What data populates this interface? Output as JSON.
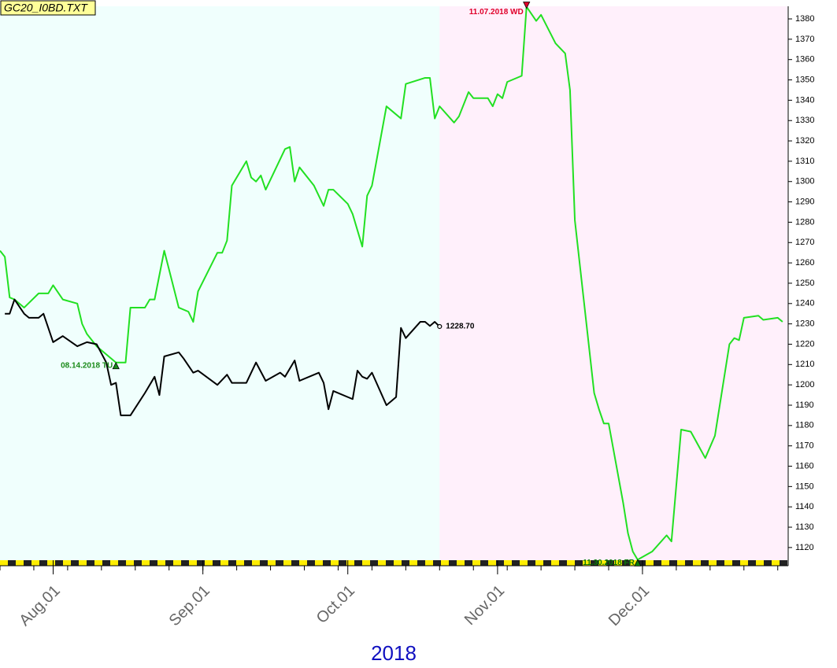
{
  "chart_data": {
    "type": "line",
    "title": "GC20_I0BD.TXT",
    "xlabel": "2018",
    "xlim": [
      "2018-07-21",
      "2018-12-31"
    ],
    "ylim": [
      1112.6,
      1386.2
    ],
    "yticks": [
      1120,
      1130,
      1140,
      1150,
      1160,
      1170,
      1180,
      1190,
      1200,
      1210,
      1220,
      1230,
      1240,
      1250,
      1260,
      1270,
      1280,
      1290,
      1300,
      1310,
      1320,
      1330,
      1340,
      1350,
      1360,
      1370,
      1380
    ],
    "xticks": [
      {
        "value": "2018-08-01",
        "label": "Aug.01"
      },
      {
        "value": "2018-09-01",
        "label": "Sep.01"
      },
      {
        "value": "2018-10-01",
        "label": "Oct.01"
      },
      {
        "value": "2018-11-01",
        "label": "Nov.01"
      },
      {
        "value": "2018-12-01",
        "label": "Dec.01"
      }
    ],
    "regions": [
      {
        "from": "2018-07-21",
        "to": "2018-10-20",
        "color": "#f0fffd"
      },
      {
        "from": "2018-10-20",
        "to": "2018-12-31",
        "color": "#fff0fb"
      }
    ],
    "series": [
      {
        "color": "#22e022",
        "x": [
          "2018-07-21",
          "2018-07-22",
          "2018-07-23",
          "2018-07-24",
          "2018-07-26",
          "2018-07-29",
          "2018-07-31",
          "2018-08-01",
          "2018-08-03",
          "2018-08-06",
          "2018-08-07",
          "2018-08-08",
          "2018-08-10",
          "2018-08-14",
          "2018-08-16",
          "2018-08-17",
          "2018-08-20",
          "2018-08-21",
          "2018-08-22",
          "2018-08-24",
          "2018-08-27",
          "2018-08-29",
          "2018-08-30",
          "2018-08-31",
          "2018-09-04",
          "2018-09-05",
          "2018-09-06",
          "2018-09-07",
          "2018-09-10",
          "2018-09-11",
          "2018-09-12",
          "2018-09-13",
          "2018-09-14",
          "2018-09-18",
          "2018-09-19",
          "2018-09-20",
          "2018-09-21",
          "2018-09-24",
          "2018-09-26",
          "2018-09-27",
          "2018-09-28",
          "2018-10-01",
          "2018-10-02",
          "2018-10-04",
          "2018-10-05",
          "2018-10-06",
          "2018-10-09",
          "2018-10-10",
          "2018-10-12",
          "2018-10-13",
          "2018-10-17",
          "2018-10-18",
          "2018-10-19",
          "2018-10-20",
          "2018-10-23",
          "2018-10-24",
          "2018-10-26",
          "2018-10-27",
          "2018-10-30",
          "2018-10-31",
          "2018-11-01",
          "2018-11-02",
          "2018-11-03",
          "2018-11-06",
          "2018-11-07",
          "2018-11-09",
          "2018-11-10",
          "2018-11-13",
          "2018-11-15",
          "2018-11-16",
          "2018-11-17",
          "2018-11-21",
          "2018-11-22",
          "2018-11-23",
          "2018-11-24",
          "2018-11-27",
          "2018-11-28",
          "2018-11-29",
          "2018-11-30",
          "2018-12-03",
          "2018-12-06",
          "2018-12-07",
          "2018-12-09",
          "2018-12-11",
          "2018-12-14",
          "2018-12-16",
          "2018-12-19",
          "2018-12-20",
          "2018-12-21",
          "2018-12-22",
          "2018-12-25",
          "2018-12-26",
          "2018-12-29",
          "2018-12-30"
        ],
        "values": [
          1266,
          1263,
          1243,
          1242,
          1238,
          1245,
          1245,
          1249,
          1242,
          1240,
          1230,
          1225,
          1219,
          1211,
          1211,
          1238,
          1238,
          1242,
          1242,
          1266,
          1238,
          1236,
          1231,
          1246,
          1265,
          1265,
          1271,
          1298,
          1310,
          1302,
          1300,
          1303,
          1296,
          1316,
          1317,
          1300,
          1307,
          1298,
          1288,
          1296,
          1296,
          1289,
          1284,
          1268,
          1293,
          1298,
          1337,
          1335,
          1331,
          1348,
          1351,
          1351,
          1331,
          1337,
          1329,
          1332,
          1344,
          1341,
          1341,
          1337,
          1343,
          1341,
          1349,
          1352,
          1386,
          1379,
          1382,
          1368,
          1363,
          1345,
          1281,
          1196,
          1188,
          1181,
          1181,
          1142,
          1127,
          1118,
          1114,
          1118,
          1126,
          1123,
          1178,
          1177,
          1164,
          1175,
          1220,
          1223,
          1222,
          1233,
          1234,
          1232,
          1233,
          1231
        ]
      },
      {
        "color": "#000000",
        "x": [
          "2018-07-22",
          "2018-07-23",
          "2018-07-24",
          "2018-07-26",
          "2018-07-27",
          "2018-07-29",
          "2018-07-30",
          "2018-08-01",
          "2018-08-03",
          "2018-08-06",
          "2018-08-07",
          "2018-08-08",
          "2018-08-10",
          "2018-08-12",
          "2018-08-13",
          "2018-08-14",
          "2018-08-15",
          "2018-08-17",
          "2018-08-20",
          "2018-08-22",
          "2018-08-23",
          "2018-08-24",
          "2018-08-27",
          "2018-08-28",
          "2018-08-30",
          "2018-08-31",
          "2018-09-04",
          "2018-09-06",
          "2018-09-07",
          "2018-09-10",
          "2018-09-12",
          "2018-09-14",
          "2018-09-17",
          "2018-09-18",
          "2018-09-20",
          "2018-09-21",
          "2018-09-25",
          "2018-09-26",
          "2018-09-27",
          "2018-09-28",
          "2018-10-02",
          "2018-10-03",
          "2018-10-04",
          "2018-10-05",
          "2018-10-06",
          "2018-10-09",
          "2018-10-11",
          "2018-10-12",
          "2018-10-13",
          "2018-10-16",
          "2018-10-17",
          "2018-10-18",
          "2018-10-19",
          "2018-10-20"
        ],
        "values": [
          1235,
          1235,
          1242,
          1235,
          1233,
          1233,
          1235,
          1221,
          1224,
          1219,
          1220,
          1221,
          1220,
          1211,
          1200,
          1201,
          1185,
          1185,
          1196,
          1204,
          1195,
          1214,
          1216,
          1213,
          1206,
          1207,
          1200,
          1205,
          1201,
          1201,
          1211,
          1202,
          1206,
          1204,
          1212,
          1202,
          1206,
          1201,
          1188,
          1197,
          1193,
          1207,
          1204,
          1203,
          1206,
          1190,
          1194,
          1228,
          1223,
          1231,
          1231,
          1229,
          1231,
          1228.7
        ]
      }
    ],
    "annotations": [
      {
        "x": "2018-08-14",
        "y": 1211,
        "text": "08.14.2018 TU",
        "marker": "up",
        "color": "#1a8a1a"
      },
      {
        "x": "2018-11-07",
        "y": 1386,
        "text": "11.07.2018 WD",
        "marker": "down",
        "color": "#e0002a"
      },
      {
        "x": "2018-11-30",
        "y": 1114,
        "text": "11.30.2018 FR",
        "marker": "up",
        "color": "#0a7a0a"
      },
      {
        "x": "2018-10-20",
        "y": 1228.7,
        "text": "1228.70",
        "marker": "circle",
        "color": "#000000"
      }
    ]
  }
}
